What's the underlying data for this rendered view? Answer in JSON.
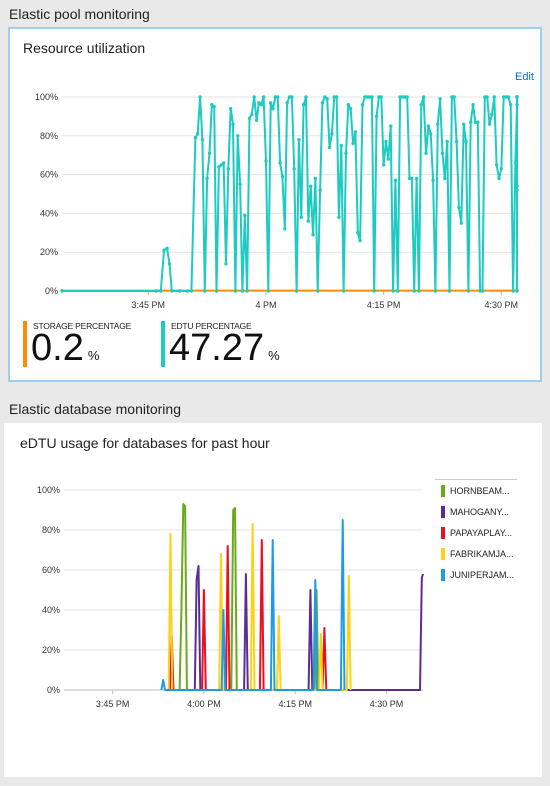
{
  "sections": {
    "pool": "Elastic pool monitoring",
    "database": "Elastic database monitoring"
  },
  "pool_panel": {
    "title": "Resource utilization",
    "edit_label": "Edit",
    "metrics": [
      {
        "label": "STORAGE PERCENTAGE",
        "value": "0.2",
        "unit": "%",
        "color": "#ff8c00"
      },
      {
        "label": "EDTU PERCENTAGE",
        "value": "47.27",
        "unit": "%",
        "color": "#1dcbc1"
      }
    ]
  },
  "db_panel": {
    "title": "eDTU usage for databases for past hour"
  },
  "chart_data": [
    {
      "type": "line",
      "ylim": [
        0,
        100
      ],
      "y_ticks": [
        "0%",
        "20%",
        "40%",
        "60%",
        "80%",
        "100%"
      ],
      "x_ticks": [
        "3:45 PM",
        "4 PM",
        "4:15 PM",
        "4:30 PM"
      ],
      "x_tick_minutes": [
        45,
        60,
        75,
        90
      ],
      "xlim_minutes": [
        34,
        92
      ],
      "series": [
        {
          "name": "STORAGE PERCENTAGE",
          "color": "#ff8c00",
          "points": [
            [
              34,
              0.2
            ],
            [
              92,
              0.2
            ]
          ]
        },
        {
          "name": "EDTU PERCENTAGE",
          "color": "#1dcbc1",
          "points": [
            [
              34,
              0
            ],
            [
              46,
              0
            ],
            [
              46.6,
              0
            ],
            [
              47,
              21
            ],
            [
              47.4,
              22
            ],
            [
              47.7,
              14
            ],
            [
              48,
              0
            ],
            [
              49,
              0
            ],
            [
              50,
              0
            ],
            [
              50.5,
              0
            ],
            [
              51,
              79
            ],
            [
              51.3,
              81
            ],
            [
              51.6,
              100
            ],
            [
              51.9,
              78
            ],
            [
              52.2,
              0
            ],
            [
              52.5,
              58
            ],
            [
              52.8,
              71
            ],
            [
              53.1,
              96
            ],
            [
              53.4,
              95
            ],
            [
              53.7,
              0
            ],
            [
              54,
              64
            ],
            [
              54.3,
              65
            ],
            [
              54.6,
              66
            ],
            [
              54.9,
              14
            ],
            [
              55.2,
              63
            ],
            [
              55.5,
              94
            ],
            [
              55.8,
              86
            ],
            [
              56.1,
              0
            ],
            [
              56.4,
              80
            ],
            [
              56.7,
              55
            ],
            [
              57,
              0
            ],
            [
              57.3,
              39
            ],
            [
              57.6,
              0
            ],
            [
              57.9,
              89
            ],
            [
              58.2,
              91
            ],
            [
              58.5,
              100
            ],
            [
              58.8,
              88
            ],
            [
              59.1,
              97
            ],
            [
              59.4,
              96
            ],
            [
              59.7,
              100
            ],
            [
              60,
              67
            ],
            [
              60.3,
              0
            ],
            [
              60.6,
              97
            ],
            [
              60.9,
              94
            ],
            [
              61.2,
              100
            ],
            [
              61.5,
              100
            ],
            [
              61.8,
              66
            ],
            [
              62.1,
              59
            ],
            [
              62.4,
              32
            ],
            [
              62.7,
              97
            ],
            [
              63,
              100
            ],
            [
              63.3,
              100
            ],
            [
              63.6,
              63
            ],
            [
              63.9,
              0
            ],
            [
              64.2,
              78
            ],
            [
              64.5,
              38
            ],
            [
              64.8,
              96
            ],
            [
              65.1,
              100
            ],
            [
              65.4,
              36
            ],
            [
              65.7,
              54
            ],
            [
              66,
              29
            ],
            [
              66.3,
              58
            ],
            [
              66.6,
              0
            ],
            [
              66.9,
              52
            ],
            [
              67.2,
              97
            ],
            [
              67.5,
              100
            ],
            [
              67.8,
              99
            ],
            [
              68.1,
              74
            ],
            [
              68.4,
              81
            ],
            [
              68.7,
              100
            ],
            [
              69,
              100
            ],
            [
              69.3,
              38
            ],
            [
              69.6,
              75
            ],
            [
              69.9,
              0
            ],
            [
              70.2,
              71
            ],
            [
              70.5,
              96
            ],
            [
              70.8,
              94
            ],
            [
              71.1,
              76
            ],
            [
              71.4,
              82
            ],
            [
              71.7,
              30
            ],
            [
              72,
              26
            ],
            [
              72.3,
              96
            ],
            [
              72.6,
              100
            ],
            [
              72.9,
              100
            ],
            [
              73.2,
              100
            ],
            [
              73.5,
              100
            ],
            [
              73.8,
              0
            ],
            [
              74.1,
              90
            ],
            [
              74.4,
              100
            ],
            [
              74.7,
              100
            ],
            [
              75,
              65
            ],
            [
              75.3,
              77
            ],
            [
              75.6,
              68
            ],
            [
              75.9,
              85
            ],
            [
              76.2,
              0
            ],
            [
              76.5,
              57
            ],
            [
              76.8,
              0
            ],
            [
              77.1,
              100
            ],
            [
              77.4,
              100
            ],
            [
              77.7,
              100
            ],
            [
              78,
              100
            ],
            [
              78.3,
              58
            ],
            [
              78.6,
              58
            ],
            [
              78.9,
              0
            ],
            [
              79.2,
              58
            ],
            [
              79.5,
              0
            ],
            [
              79.8,
              96
            ],
            [
              80.1,
              100
            ],
            [
              80.4,
              71
            ],
            [
              80.7,
              85
            ],
            [
              81,
              81
            ],
            [
              81.3,
              57
            ],
            [
              81.6,
              0
            ],
            [
              81.9,
              86
            ],
            [
              82.2,
              99
            ],
            [
              82.5,
              71
            ],
            [
              82.8,
              58
            ],
            [
              83.1,
              77
            ],
            [
              83.4,
              0
            ],
            [
              83.7,
              100
            ],
            [
              84,
              100
            ],
            [
              84.3,
              77
            ],
            [
              84.6,
              43
            ],
            [
              84.9,
              35
            ],
            [
              85.2,
              86
            ],
            [
              85.5,
              77
            ],
            [
              85.8,
              0
            ],
            [
              86.1,
              87
            ],
            [
              86.4,
              96
            ],
            [
              86.7,
              87
            ],
            [
              87,
              87
            ],
            [
              87.3,
              0
            ],
            [
              87.6,
              0
            ],
            [
              87.9,
              100
            ],
            [
              88.2,
              100
            ],
            [
              88.5,
              86
            ],
            [
              88.8,
              91
            ],
            [
              89.1,
              100
            ],
            [
              89.4,
              65
            ],
            [
              89.7,
              58
            ],
            [
              90,
              63
            ],
            [
              90.3,
              100
            ],
            [
              90.6,
              100
            ],
            [
              90.9,
              100
            ],
            [
              91.2,
              96
            ],
            [
              91.5,
              0
            ],
            [
              91.8,
              66
            ],
            [
              92.1,
              96
            ],
            [
              92.4,
              100
            ],
            [
              92.7,
              100
            ],
            [
              93,
              100
            ],
            [
              93.3,
              100
            ],
            [
              93.6,
              54
            ],
            [
              93.9,
              52
            ],
            [
              94.2,
              0
            ]
          ]
        }
      ]
    },
    {
      "type": "area",
      "ylim": [
        0,
        100
      ],
      "y_ticks": [
        "0%",
        "20%",
        "40%",
        "60%",
        "80%",
        "100%"
      ],
      "x_ticks": [
        "3:45 PM",
        "4:00 PM",
        "4:15 PM",
        "4:30 PM"
      ],
      "x_tick_minutes": [
        45,
        60,
        75,
        90
      ],
      "xlim_minutes": [
        37,
        96
      ],
      "series": [
        {
          "name": "HORNBEAM...",
          "color": "#6aaa1c",
          "points": [
            [
              56,
              0
            ],
            [
              56.3,
              40
            ],
            [
              56.6,
              93
            ],
            [
              56.9,
              92
            ],
            [
              57.2,
              0
            ],
            [
              64.5,
              0
            ],
            [
              64.8,
              90
            ],
            [
              65.1,
              91
            ],
            [
              65.4,
              0
            ],
            [
              78.2,
              0
            ],
            [
              78.5,
              50
            ],
            [
              78.8,
              0
            ]
          ]
        },
        {
          "name": "MAHOGANY...",
          "color": "#5c2d91",
          "points": [
            [
              58.5,
              0
            ],
            [
              58.8,
              55
            ],
            [
              59.1,
              62
            ],
            [
              59.4,
              0
            ],
            [
              66.6,
              0
            ],
            [
              66.9,
              58
            ],
            [
              67.2,
              0
            ],
            [
              77.2,
              0
            ],
            [
              77.5,
              50
            ],
            [
              77.8,
              0
            ],
            [
              95.5,
              0
            ],
            [
              95.8,
              56
            ],
            [
              96.1,
              58
            ]
          ]
        },
        {
          "name": "PAPAYAPLAY...",
          "color": "#e81123",
          "points": [
            [
              54.4,
              0
            ],
            [
              54.7,
              27
            ],
            [
              55,
              0
            ],
            [
              59.7,
              0
            ],
            [
              60,
              50
            ],
            [
              60.3,
              0
            ],
            [
              63.6,
              0
            ],
            [
              63.9,
              72
            ],
            [
              64.2,
              0
            ],
            [
              69.2,
              0
            ],
            [
              69.5,
              75
            ],
            [
              69.8,
              0
            ],
            [
              79.5,
              0
            ],
            [
              79.8,
              31
            ],
            [
              80.1,
              0
            ]
          ]
        },
        {
          "name": "FABRIKAMJA...",
          "color": "#fcd116",
          "points": [
            [
              54.2,
              0
            ],
            [
              54.5,
              78
            ],
            [
              54.8,
              0
            ],
            [
              62.5,
              0
            ],
            [
              62.8,
              68
            ],
            [
              63.1,
              0
            ],
            [
              67.7,
              0
            ],
            [
              68,
              83
            ],
            [
              68.3,
              0
            ],
            [
              72,
              0
            ],
            [
              72.3,
              37
            ],
            [
              72.6,
              0
            ],
            [
              78.9,
              0
            ],
            [
              79.2,
              28
            ],
            [
              79.5,
              0
            ],
            [
              83.5,
              0
            ],
            [
              83.8,
              57
            ],
            [
              84.1,
              0
            ]
          ]
        },
        {
          "name": "JUNIPERJAM...",
          "color": "#1e9be6",
          "points": [
            [
              53,
              0
            ],
            [
              53.3,
              5
            ],
            [
              53.6,
              0
            ],
            [
              62.9,
              0
            ],
            [
              63.2,
              40
            ],
            [
              63.5,
              0
            ],
            [
              71,
              0
            ],
            [
              71.3,
              75
            ],
            [
              71.6,
              0
            ],
            [
              78,
              0
            ],
            [
              78.3,
              55
            ],
            [
              78.6,
              0
            ],
            [
              82.5,
              0
            ],
            [
              82.8,
              85
            ],
            [
              83.1,
              0
            ]
          ]
        }
      ]
    }
  ]
}
